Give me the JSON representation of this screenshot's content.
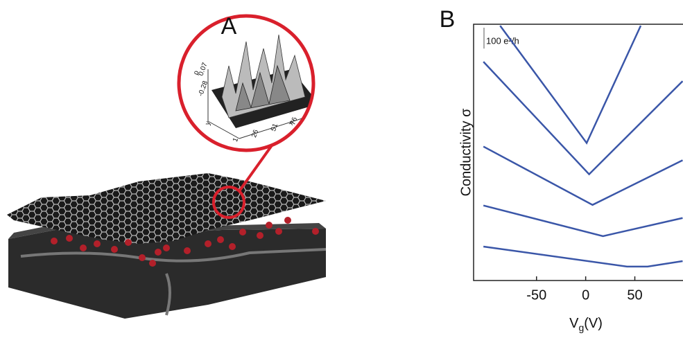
{
  "panel_a": {
    "label": "A",
    "inset_labels": [
      "ρ",
      "-0.28",
      "0.07",
      "y",
      "x",
      "1",
      "26",
      "51",
      "76"
    ]
  },
  "chart_data": {
    "type": "line",
    "panel_label": "B",
    "y_label": "Conductivity σ",
    "x_label": {
      "text": "V",
      "subscript": "g",
      "unit": "(V)"
    },
    "scale_bar": {
      "value": 100,
      "label": "100 e²/h"
    },
    "xlim": [
      -114,
      99
    ],
    "ylim": [
      0,
      1230
    ],
    "xticks": [
      -50,
      0,
      50
    ],
    "series": [
      {
        "color": "#3a56a8",
        "x": [
          -87,
          1,
          56
        ],
        "values": [
          1223,
          660,
          1223
        ]
      },
      {
        "color": "#3a56a8",
        "x": [
          -104,
          3.5,
          98.6
        ],
        "values": [
          1050,
          510,
          957
        ]
      },
      {
        "color": "#3a56a8",
        "x": [
          -104,
          7,
          98.6
        ],
        "values": [
          643,
          363,
          577
        ]
      },
      {
        "color": "#3a56a8",
        "x": [
          -104,
          17.6,
          98.6
        ],
        "values": [
          360,
          213,
          300
        ]
      },
      {
        "color": "#3a56a8",
        "x": [
          -104,
          42,
          63,
          98.6
        ],
        "values": [
          163,
          67,
          67,
          93
        ]
      }
    ]
  }
}
